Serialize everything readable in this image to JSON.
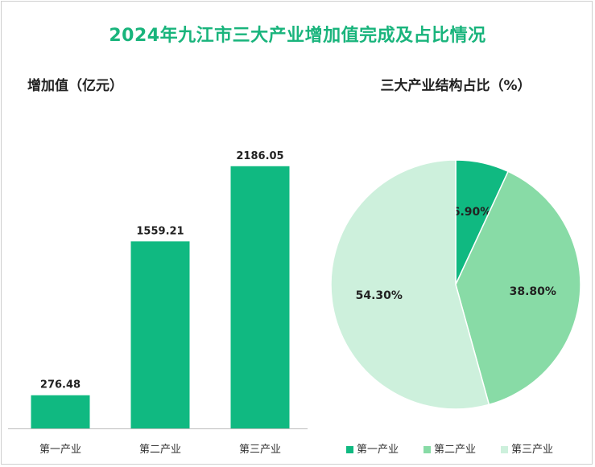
{
  "title": "2024年九江市三大产业增加值完成及占比情况",
  "colors": {
    "title": "#19b47c",
    "bar": "#10b981"
  },
  "chart_data": [
    {
      "type": "bar",
      "title": "增加值（亿元）",
      "categories": [
        "第一产业",
        "第二产业",
        "第三产业"
      ],
      "values": [
        276.48,
        1559.21,
        2186.05
      ],
      "value_labels": [
        "276.48",
        "1559.21",
        "2186.05"
      ],
      "ylim": [
        0,
        2600
      ],
      "grid": false,
      "color": "#10b981"
    },
    {
      "type": "pie",
      "title": "三大产业结构占比（%）",
      "labels": [
        "第一产业",
        "第二产业",
        "第三产业"
      ],
      "values": [
        6.9,
        38.8,
        54.3
      ],
      "value_labels": [
        "6.90%",
        "38.80%",
        "54.30%"
      ],
      "colors": [
        "#10b981",
        "#88dba6",
        "#cdf0dc"
      ],
      "legend": "bottom"
    }
  ]
}
